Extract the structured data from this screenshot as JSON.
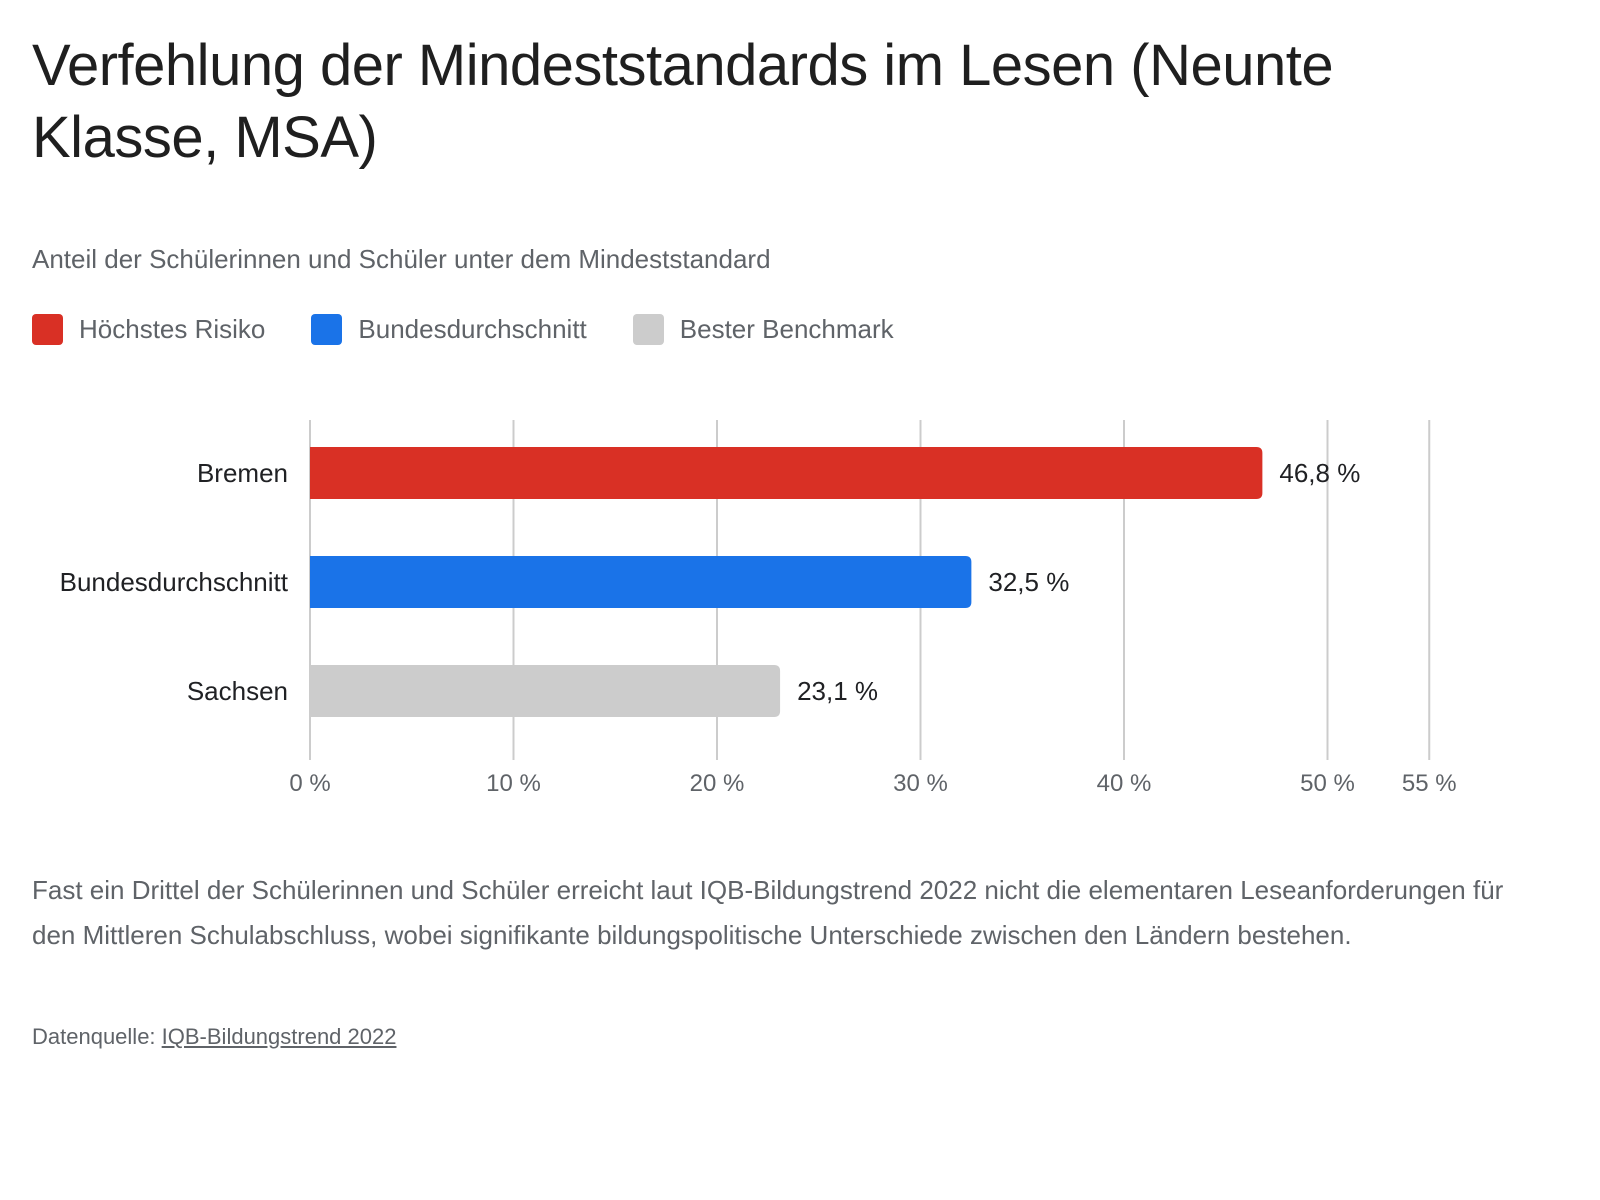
{
  "header": {
    "title": "Verfehlung der Mindeststandards im Lesen (Neunte Klasse, MSA)",
    "subtitle": "Anteil der Schülerinnen und Schüler unter dem Mindeststandard"
  },
  "legend": [
    {
      "label": "Höchstes Risiko",
      "color": "#d93025"
    },
    {
      "label": "Bundesdurchschnitt",
      "color": "#1a73e8"
    },
    {
      "label": "Bester Benchmark",
      "color": "#cccccc"
    }
  ],
  "chart_data": {
    "type": "bar",
    "orientation": "horizontal",
    "title": "Verfehlung der Mindeststandards im Lesen (Neunte Klasse, MSA)",
    "subtitle": "Anteil der Schülerinnen und Schüler unter dem Mindeststandard",
    "categories": [
      "Bremen",
      "Bundesdurchschnitt",
      "Sachsen"
    ],
    "values": [
      46.8,
      32.5,
      23.1
    ],
    "value_labels": [
      "46,8 %",
      "32,5 %",
      "23,1 %"
    ],
    "colors": [
      "#d93025",
      "#1a73e8",
      "#cccccc"
    ],
    "legend_groups": [
      "Höchstes Risiko",
      "Bundesdurchschnitt",
      "Bester Benchmark"
    ],
    "xlabel": "",
    "ylabel": "",
    "xlim": [
      0,
      55
    ],
    "xticks": [
      0,
      10,
      20,
      30,
      40,
      50,
      55
    ],
    "xtick_labels": [
      "0 %",
      "10 %",
      "20 %",
      "30 %",
      "40 %",
      "50 %",
      "55 %"
    ],
    "grid": true,
    "legend_position": "top-left"
  },
  "footer": {
    "description": "Fast ein Drittel der Schülerinnen und Schüler erreicht laut IQB-Bildungstrend 2022 nicht die elementaren Leseanforderungen für den Mittleren Schulabschluss, wobei signifikante bildungspolitische Unterschiede zwischen den Ländern bestehen.",
    "source_prefix": "Datenquelle: ",
    "source_link": "IQB-Bildungstrend 2022"
  }
}
